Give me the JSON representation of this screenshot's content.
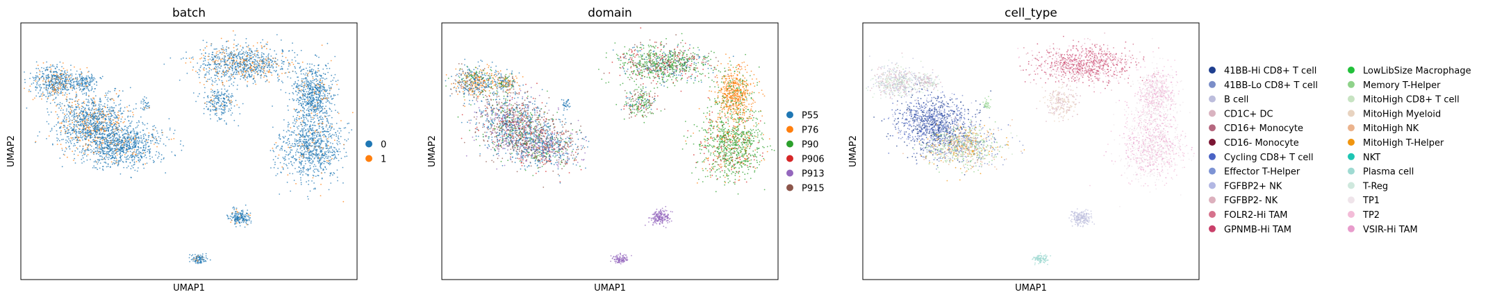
{
  "chart_data": [
    {
      "type": "scatter",
      "title": "batch",
      "xlabel": "UMAP1",
      "ylabel": "UMAP2",
      "grid": false,
      "legend_position": "right",
      "series": [
        {
          "name": "0",
          "color": "#1f77b4"
        },
        {
          "name": "1",
          "color": "#ff7f0e"
        }
      ]
    },
    {
      "type": "scatter",
      "title": "domain",
      "xlabel": "UMAP1",
      "ylabel": "UMAP2",
      "grid": false,
      "legend_position": "right",
      "series": [
        {
          "name": "P55",
          "color": "#1f77b4"
        },
        {
          "name": "P76",
          "color": "#ff7f0e"
        },
        {
          "name": "P90",
          "color": "#2ca02c"
        },
        {
          "name": "P906",
          "color": "#d62728"
        },
        {
          "name": "P913",
          "color": "#9467bd"
        },
        {
          "name": "P915",
          "color": "#8c564b"
        }
      ]
    },
    {
      "type": "scatter",
      "title": "cell_type",
      "xlabel": "UMAP1",
      "ylabel": "UMAP2",
      "grid": false,
      "legend_position": "right",
      "series": [
        {
          "name": "41BB-Hi CD8+ T cell",
          "color": "#1f3f8f"
        },
        {
          "name": "41BB-Lo CD8+ T cell",
          "color": "#7b8ec8"
        },
        {
          "name": "B cell",
          "color": "#bcbddc"
        },
        {
          "name": "CD1C+ DC",
          "color": "#d9b3c0"
        },
        {
          "name": "CD16+ Monocyte",
          "color": "#b5677f"
        },
        {
          "name": "CD16- Monocyte",
          "color": "#7b1634"
        },
        {
          "name": "Cycling CD8+ T cell",
          "color": "#4a63c4"
        },
        {
          "name": "Effector T-Helper",
          "color": "#7d93d4"
        },
        {
          "name": "FGFBP2+ NK",
          "color": "#b2b7e3"
        },
        {
          "name": "FGFBP2- NK",
          "color": "#dcb0bd"
        },
        {
          "name": "FOLR2-Hi TAM",
          "color": "#d6728c"
        },
        {
          "name": "GPNMB-Hi TAM",
          "color": "#c9406a"
        },
        {
          "name": "LowLibSize Macrophage",
          "color": "#22c03a"
        },
        {
          "name": "Memory T-Helper",
          "color": "#8fd28a"
        },
        {
          "name": "MitoHigh CD8+ T cell",
          "color": "#c7e3c2"
        },
        {
          "name": "MitoHigh Myeloid",
          "color": "#e8d3c0"
        },
        {
          "name": "MitoHigh NK",
          "color": "#ebb38d"
        },
        {
          "name": "MitoHigh T-Helper",
          "color": "#f0950f"
        },
        {
          "name": "NKT",
          "color": "#1ec5b3"
        },
        {
          "name": "Plasma cell",
          "color": "#9fdad2"
        },
        {
          "name": "T-Reg",
          "color": "#cfe8dd"
        },
        {
          "name": "TP1",
          "color": "#efe4ea"
        },
        {
          "name": "TP2",
          "color": "#f3bcd8"
        },
        {
          "name": "VSIR-Hi TAM",
          "color": "#e89ccc"
        }
      ]
    }
  ]
}
